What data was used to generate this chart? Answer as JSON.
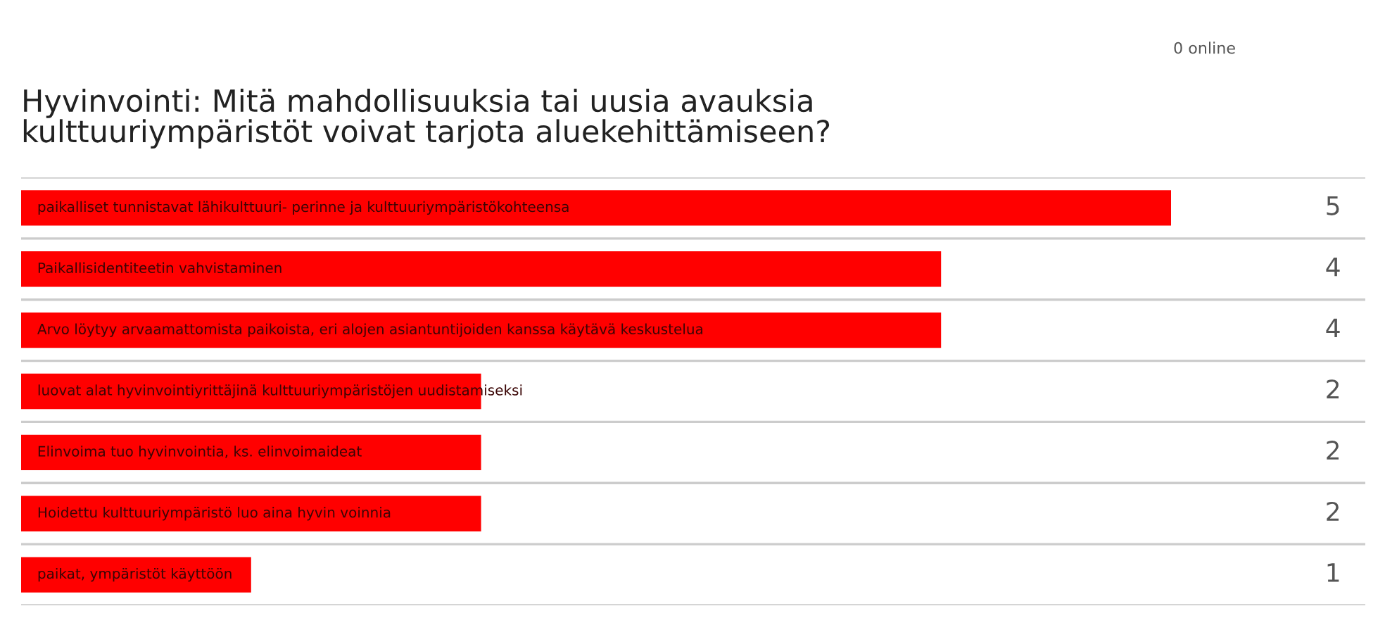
{
  "chart_data": {
    "type": "bar",
    "orientation": "horizontal",
    "title": "Hyvinvointi: Mitä mahdollisuuksia tai uusia avauksia\nkulttuuriympäristöt voivat tarjota aluekehittämiseen?",
    "categories": [
      "paikalliset tunnistavat lähikulttuuri- perinne ja kulttuuriympäristökohteensa",
      "Paikallisidentiteetin vahvistaminen",
      "Arvo löytyy arvaamattomista paikoista, eri alojen asiantuntijoiden kanssa käytävä keskustelua",
      "luovat alat hyvinvointiyrittäjinä kulttuuriympäristöjen uudistamiseksi",
      "Elinvoima tuo hyvinvointia, ks. elinvoimaideat",
      "Hoidettu kulttuuriympäristö luo aina hyvin voinnia",
      "paikat, ympäristöt käyttöön"
    ],
    "values": [
      5,
      4,
      4,
      2,
      2,
      2,
      1
    ],
    "color": "#ff0000",
    "data_labels": true,
    "grid": "y",
    "annotations": [
      "0 online"
    ]
  }
}
